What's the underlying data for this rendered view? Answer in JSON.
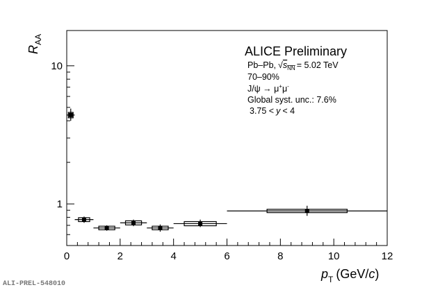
{
  "chart_data": {
    "type": "scatter",
    "xlabel": "p_T (GeV/c)",
    "xlabel_main": "p",
    "xlabel_sub": "T",
    "xlabel_unit_open": "(GeV/",
    "xlabel_unit_var": "c",
    "xlabel_unit_close": ")",
    "ylabel": "R_AA",
    "ylabel_main": "R",
    "ylabel_sub": "AA",
    "xlim": [
      0,
      12
    ],
    "ylim": [
      0.5,
      18
    ],
    "y_scale": "log",
    "grid": false,
    "x_ticks": [
      {
        "value": 0,
        "label": "0"
      },
      {
        "value": 2,
        "label": "2"
      },
      {
        "value": 4,
        "label": "4"
      },
      {
        "value": 6,
        "label": "6"
      },
      {
        "value": 8,
        "label": "8"
      },
      {
        "value": 10,
        "label": "10"
      },
      {
        "value": 12,
        "label": "12"
      }
    ],
    "y_ticks": [
      {
        "value": 1,
        "label": "1"
      },
      {
        "value": 10,
        "label": "10"
      }
    ],
    "points": [
      {
        "x": 0.15,
        "y": 4.4,
        "x_low": 0.0,
        "x_high": 0.3,
        "stat_low": 4.0,
        "stat_high": 4.9,
        "sys_low": 4.2,
        "sys_high": 4.6
      },
      {
        "x": 0.65,
        "y": 0.77,
        "x_low": 0.3,
        "x_high": 1.0,
        "stat_low": 0.73,
        "stat_high": 0.81,
        "sys_low": 0.745,
        "sys_high": 0.795
      },
      {
        "x": 1.5,
        "y": 0.67,
        "x_low": 1.0,
        "x_high": 2.0,
        "stat_low": 0.64,
        "stat_high": 0.7,
        "sys_low": 0.65,
        "sys_high": 0.69
      },
      {
        "x": 2.5,
        "y": 0.73,
        "x_low": 2.0,
        "x_high": 3.0,
        "stat_low": 0.69,
        "stat_high": 0.77,
        "sys_low": 0.705,
        "sys_high": 0.755
      },
      {
        "x": 3.5,
        "y": 0.67,
        "x_low": 3.0,
        "x_high": 4.0,
        "stat_low": 0.63,
        "stat_high": 0.71,
        "sys_low": 0.65,
        "sys_high": 0.69
      },
      {
        "x": 5.0,
        "y": 0.72,
        "x_low": 4.0,
        "x_high": 6.0,
        "stat_low": 0.68,
        "stat_high": 0.77,
        "sys_low": 0.695,
        "sys_high": 0.745
      },
      {
        "x": 9.0,
        "y": 0.89,
        "x_low": 6.0,
        "x_high": 12.0,
        "stat_low": 0.82,
        "stat_high": 0.97,
        "sys_low": 0.865,
        "sys_high": 0.915,
        "sys_x_low": 7.5,
        "sys_x_high": 10.5
      }
    ],
    "legend": {
      "title": "ALICE Preliminary",
      "system": "Pb–Pb,",
      "sqrt_symbol": "√",
      "sqrt_var": "s",
      "sqrt_sub": "NN",
      "energy": "= 5.02 TeV",
      "centrality": "70–90%",
      "decay_prefix": "J/ψ → μ",
      "decay_sup1": "+",
      "decay_mid": "μ",
      "decay_sup2": "-",
      "global_unc": "Global syst. unc.: 7.6%",
      "rapidity_low": "3.75 <",
      "rapidity_var": "y",
      "rapidity_high": "< 4",
      "placement": "top-right"
    }
  },
  "footer": "ALI-PREL-548010"
}
